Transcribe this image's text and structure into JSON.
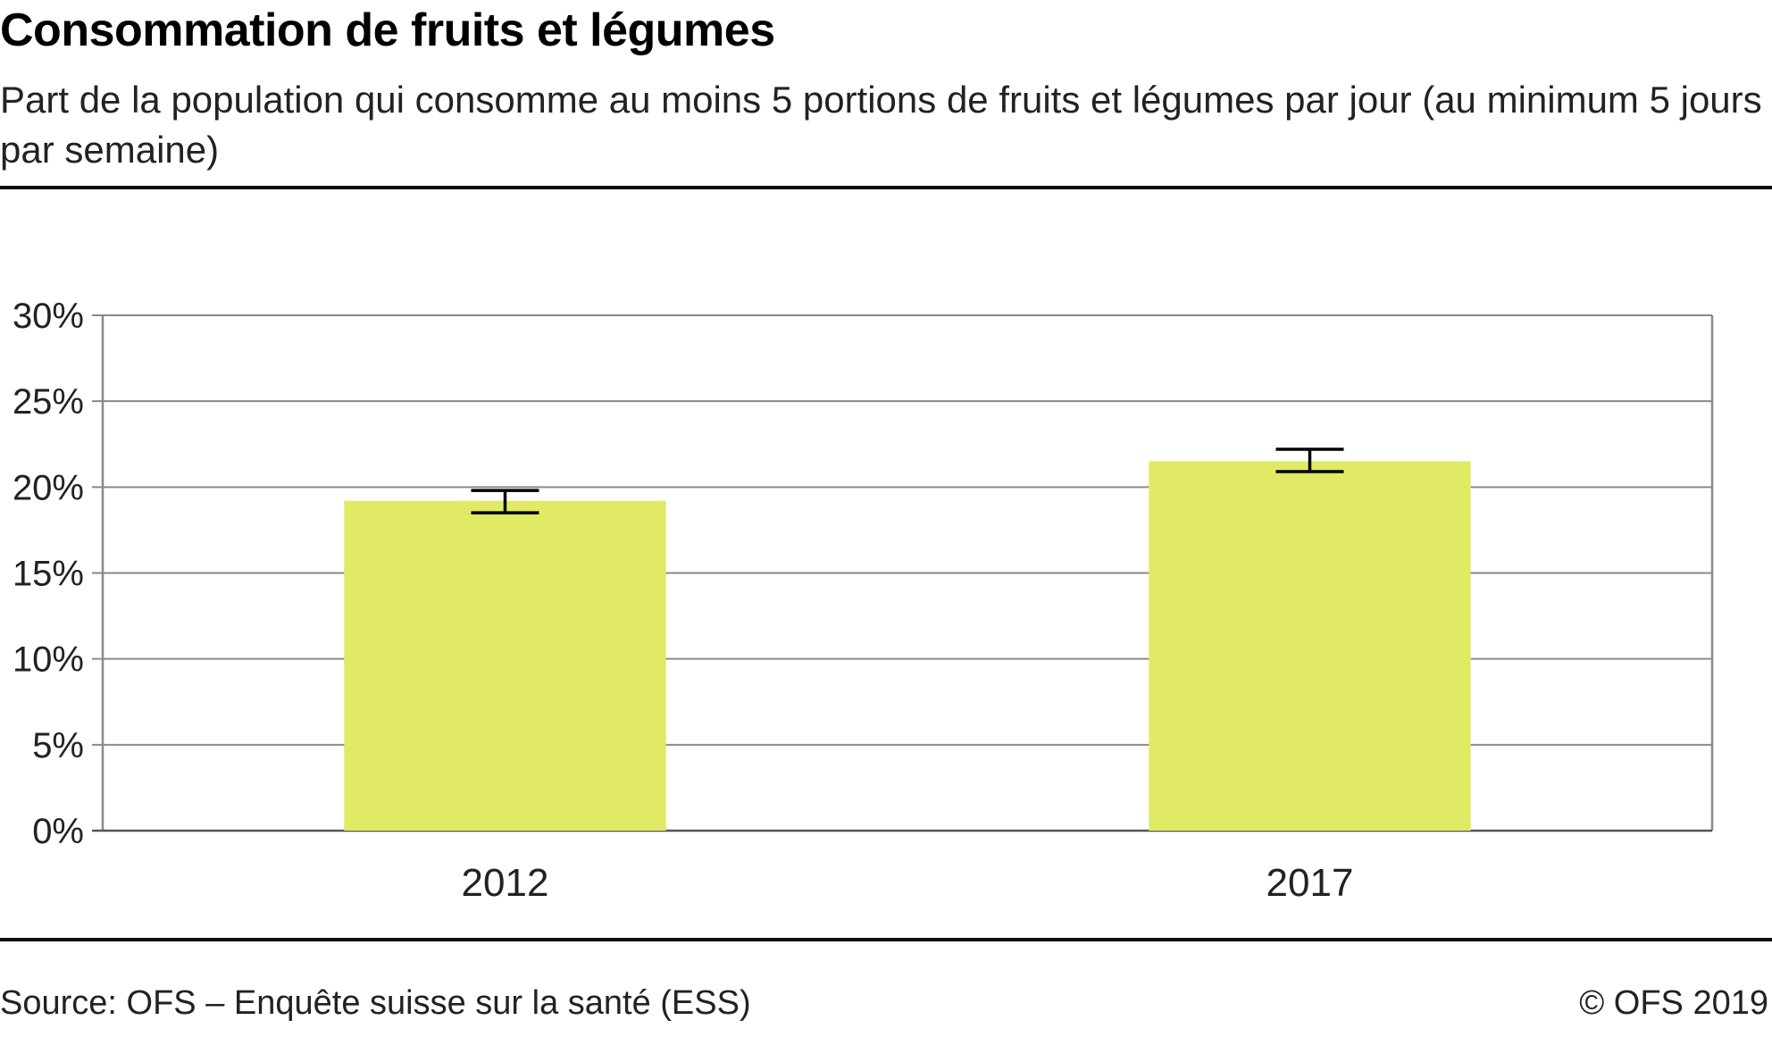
{
  "title": "Consommation de fruits et légumes",
  "subtitle": "Part de la population qui consomme au moins 5 portions de fruits et légumes par jour (au minimum 5 jours par semaine)",
  "footer": {
    "source": "Source: OFS – Enquête suisse sur la santé (ESS)",
    "copyright": "© OFS 2019"
  },
  "chart_data": {
    "type": "bar",
    "categories": [
      "2012",
      "2017"
    ],
    "values": [
      19.2,
      21.5
    ],
    "error_bars": [
      {
        "low": 18.5,
        "high": 19.8
      },
      {
        "low": 20.9,
        "high": 22.2
      }
    ],
    "ylim": [
      0,
      30
    ],
    "yticks": [
      0,
      5,
      10,
      15,
      20,
      25,
      30
    ],
    "ytick_suffix": "%",
    "grid": true,
    "bar_color": "#e1ea64",
    "grid_color": "#8a8a8a",
    "error_bar_color": "#000000"
  }
}
